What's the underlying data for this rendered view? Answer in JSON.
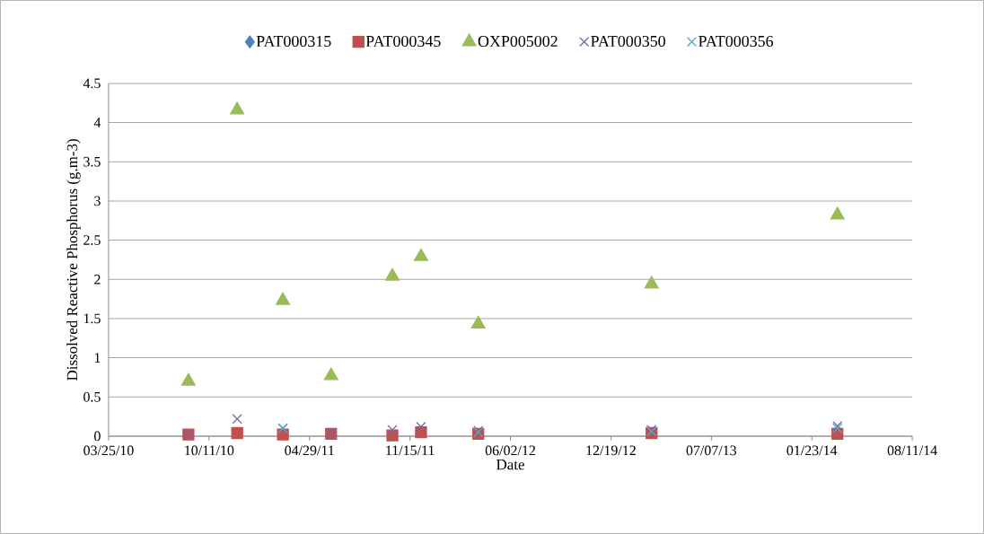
{
  "chart_data": {
    "type": "scatter",
    "xlabel": "Date",
    "ylabel": "Dissolved Reactive Phosphorus (g.m-3)",
    "x": [
      "2010-08-31",
      "2010-12-06",
      "2011-03-07",
      "2011-06-11",
      "2011-10-11",
      "2011-12-07",
      "2012-03-30",
      "2013-03-10",
      "2014-03-15"
    ],
    "series": [
      {
        "name": "PAT000315",
        "color": "#4f81bd",
        "marker": "diamond",
        "values": [
          null,
          null,
          null,
          null,
          null,
          null,
          null,
          null,
          null
        ]
      },
      {
        "name": "PAT000345",
        "color": "#c0504d",
        "marker": "square",
        "values": [
          0.02,
          0.04,
          0.02,
          0.03,
          0.01,
          0.05,
          0.03,
          0.04,
          0.03
        ]
      },
      {
        "name": "OXP005002",
        "color": "#9bbb59",
        "marker": "triangle",
        "values": [
          0.7,
          4.16,
          1.73,
          0.77,
          2.04,
          2.29,
          1.43,
          1.94,
          2.82
        ]
      },
      {
        "name": "PAT000350",
        "color": "#8064a2",
        "marker": "cross",
        "values": [
          0.02,
          0.22,
          0.1,
          0.04,
          0.08,
          0.12,
          0.07,
          0.08,
          0.13
        ]
      },
      {
        "name": "PAT000356",
        "color": "#4bacc6",
        "marker": "cross",
        "values": [
          null,
          null,
          0.1,
          null,
          null,
          null,
          0.05,
          0.06,
          0.1
        ]
      }
    ],
    "xlim": [
      "2010-03-25",
      "2014-08-11"
    ],
    "xticks": [
      {
        "value": "2010-03-25",
        "label": "03/25/10"
      },
      {
        "value": "2010-10-11",
        "label": "10/11/10"
      },
      {
        "value": "2011-04-29",
        "label": "04/29/11"
      },
      {
        "value": "2011-11-15",
        "label": "11/15/11"
      },
      {
        "value": "2012-06-02",
        "label": "06/02/12"
      },
      {
        "value": "2012-12-19",
        "label": "12/19/12"
      },
      {
        "value": "2013-07-07",
        "label": "07/07/13"
      },
      {
        "value": "2014-01-23",
        "label": "01/23/14"
      },
      {
        "value": "2014-08-11",
        "label": "08/11/14"
      }
    ],
    "ylim": [
      0,
      4.5
    ],
    "yticks": [
      0,
      0.5,
      1,
      1.5,
      2,
      2.5,
      3,
      3.5,
      4,
      4.5
    ],
    "grid": "y",
    "legend": "top"
  }
}
